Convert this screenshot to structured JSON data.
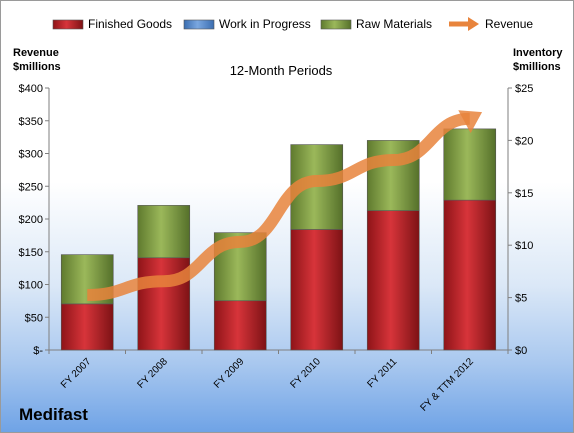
{
  "chart_data": {
    "type": "bar",
    "title": "12-Month Periods",
    "left_axis_label": [
      "Revenue",
      "$millions"
    ],
    "right_axis_label": [
      "Inventory",
      "$millions"
    ],
    "categories": [
      "FY 2007",
      "FY 2008",
      "FY 2009",
      "FY 2010",
      "FY 2011",
      "FY & TTM 2012"
    ],
    "left_ylim": [
      0,
      400
    ],
    "right_ylim": [
      0,
      25
    ],
    "left_ticks": [
      "$-",
      "$50",
      "$100",
      "$150",
      "$200",
      "$250",
      "$300",
      "$350",
      "$400"
    ],
    "right_ticks": [
      "$0",
      "$5",
      "$10",
      "$15",
      "$20",
      "$25"
    ],
    "stacked": true,
    "legend_position": "top",
    "series": [
      {
        "name": "Finished Goods",
        "axis": "right",
        "color": "#c0272d",
        "values": [
          4.4,
          8.8,
          4.7,
          11.5,
          13.3,
          14.3
        ]
      },
      {
        "name": "Work in Progress",
        "axis": "right",
        "color": "#5b8fd1",
        "values": [
          0,
          0,
          0,
          0,
          0,
          0
        ]
      },
      {
        "name": "Raw Materials",
        "axis": "right",
        "color": "#8aa64a",
        "values": [
          4.7,
          5.0,
          6.5,
          8.1,
          6.7,
          6.8
        ]
      },
      {
        "name": "Revenue",
        "axis": "left",
        "color": "#e8843c",
        "type": "line",
        "values": [
          84,
          105,
          165,
          258,
          290,
          353
        ]
      }
    ]
  },
  "company": "Medifast"
}
